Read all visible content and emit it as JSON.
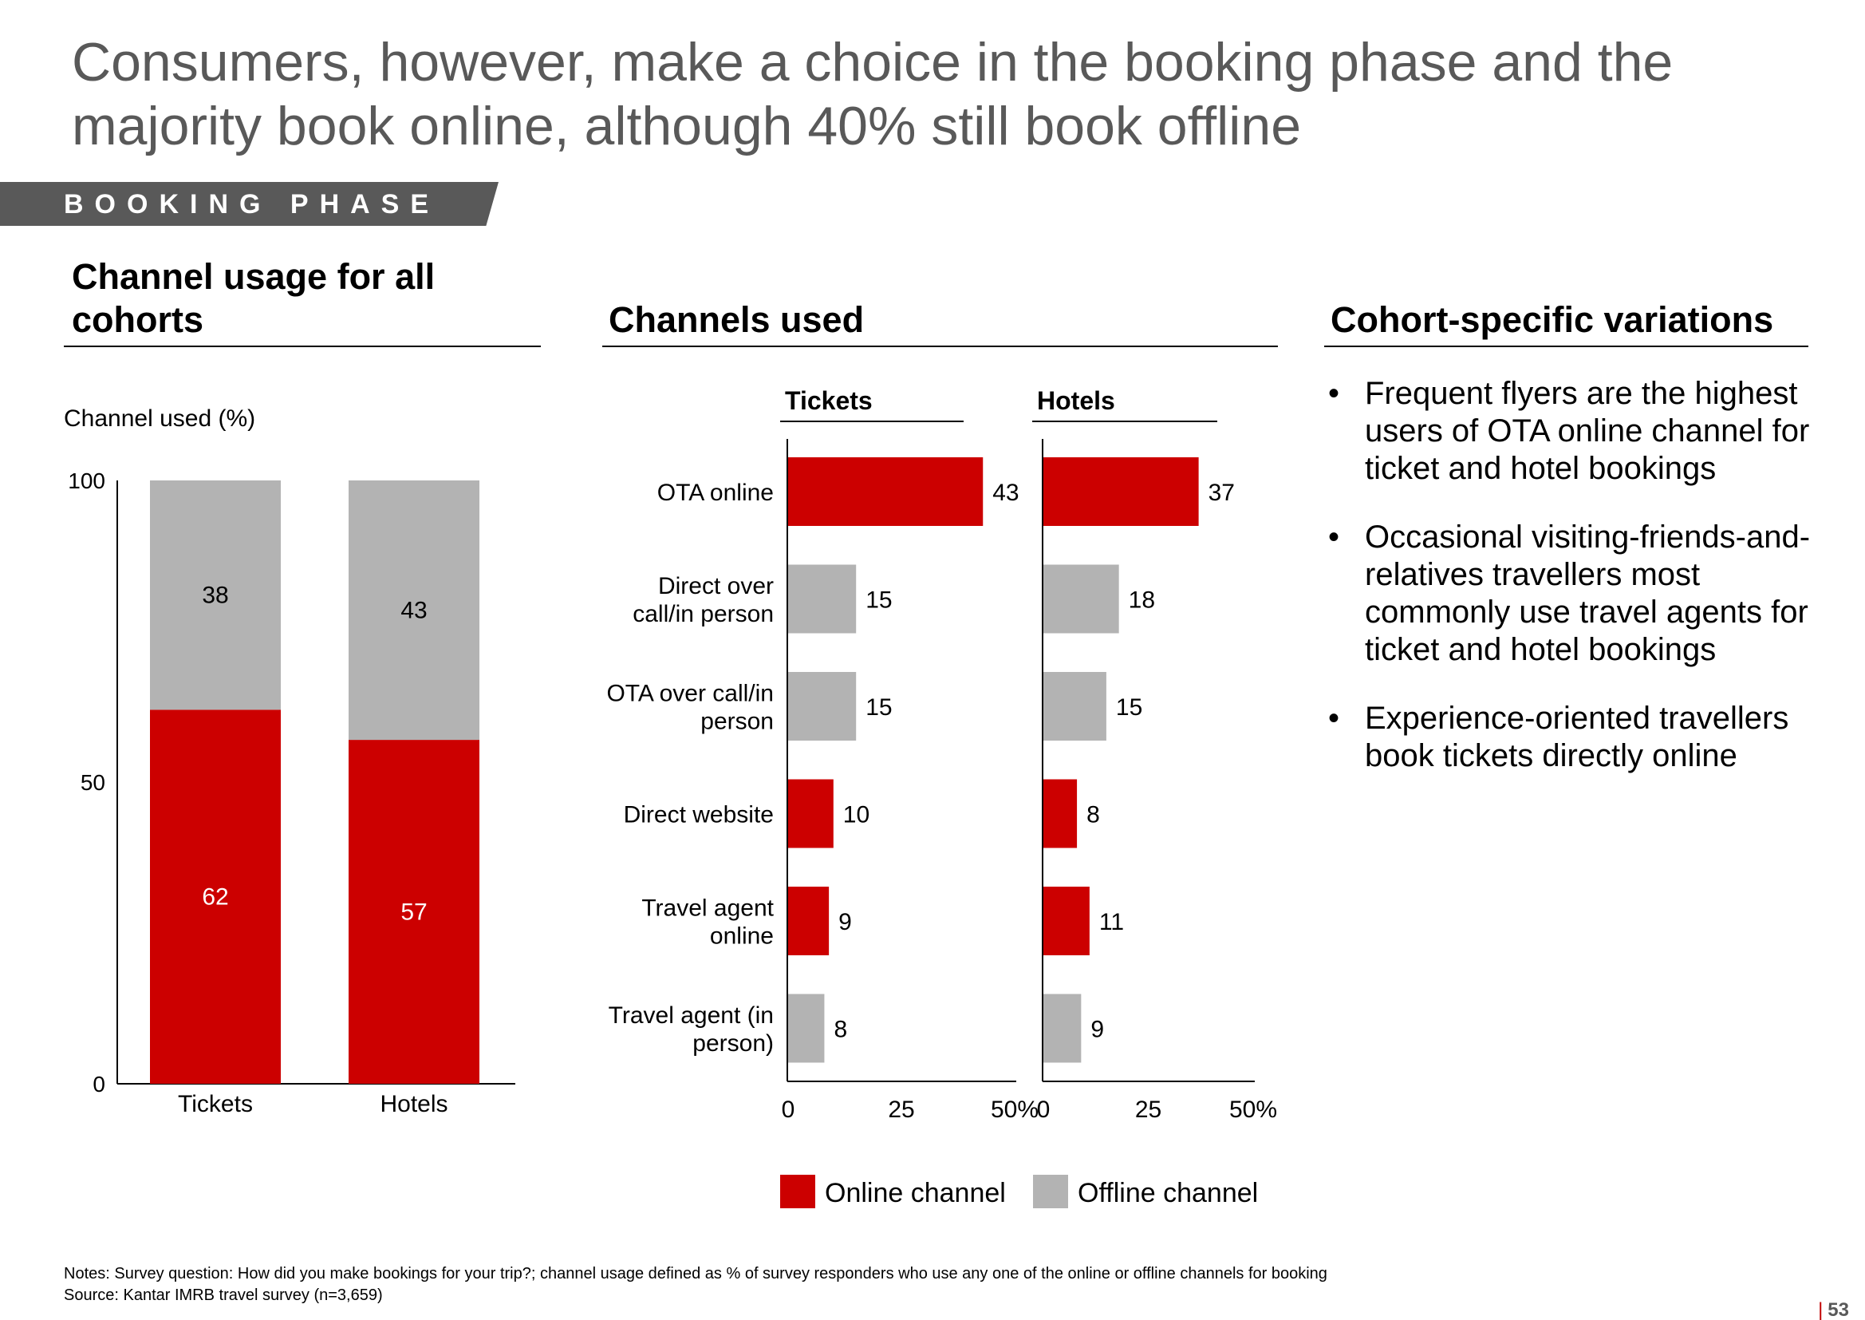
{
  "title": "Consumers, however, make a choice in the booking phase and the majority book online, although 40% still book offline",
  "phase_label": "BOOKING PHASE",
  "sections": {
    "left": "Channel usage for all cohorts",
    "middle": "Channels used",
    "right": "Cohort-specific variations"
  },
  "bullets": [
    "Frequent flyers are the highest users of OTA online channel for ticket and hotel bookings",
    "Occasional visiting-friends-and-relatives travellers most commonly use travel agents for ticket and hotel bookings",
    "Experience-oriented travellers book tickets directly online"
  ],
  "bullet_symbol": "•",
  "notes": "Notes: Survey question: How did you make bookings for your trip?; channel usage defined as % of survey responders who use any one of the online or offline channels for booking",
  "source": "Source: Kantar IMRB travel survey (n=3,659)",
  "page_number": "53",
  "page_bar": "|",
  "colors": {
    "online": "#cc0000",
    "offline": "#b3b3b3",
    "axis": "#000000"
  },
  "chart_data": [
    {
      "type": "bar",
      "stacked": true,
      "ylabel": "Channel used (%)",
      "ylim": [
        0,
        100
      ],
      "yticks": [
        "0",
        "50",
        "100"
      ],
      "categories": [
        "Tickets",
        "Hotels"
      ],
      "series": [
        {
          "name": "Online channel",
          "values": [
            62,
            57
          ],
          "color": "#cc0000"
        },
        {
          "name": "Offline channel",
          "values": [
            38,
            43
          ],
          "color": "#b3b3b3"
        }
      ]
    },
    {
      "type": "bar",
      "orientation": "horizontal",
      "channels": [
        {
          "label": [
            "OTA online"
          ],
          "kind": "online"
        },
        {
          "label": [
            "Direct over",
            "call/in person"
          ],
          "kind": "offline"
        },
        {
          "label": [
            "OTA over call/in",
            "person"
          ],
          "kind": "offline"
        },
        {
          "label": [
            "Direct website"
          ],
          "kind": "online"
        },
        {
          "label": [
            "Travel agent",
            "online"
          ],
          "kind": "online"
        },
        {
          "label": [
            "Travel agent (in",
            "person)"
          ],
          "kind": "offline"
        }
      ],
      "panels": [
        {
          "title": "Tickets",
          "values": [
            43,
            15,
            15,
            10,
            9,
            8
          ]
        },
        {
          "title": "Hotels",
          "values": [
            37,
            18,
            15,
            8,
            11,
            9
          ]
        }
      ],
      "xlim": [
        0,
        50
      ],
      "xticks": [
        "0",
        "25",
        "50%"
      ],
      "legend": [
        {
          "name": "Online channel",
          "kind": "online"
        },
        {
          "name": "Offline channel",
          "kind": "offline"
        }
      ],
      "legend_position": "bottom"
    }
  ]
}
